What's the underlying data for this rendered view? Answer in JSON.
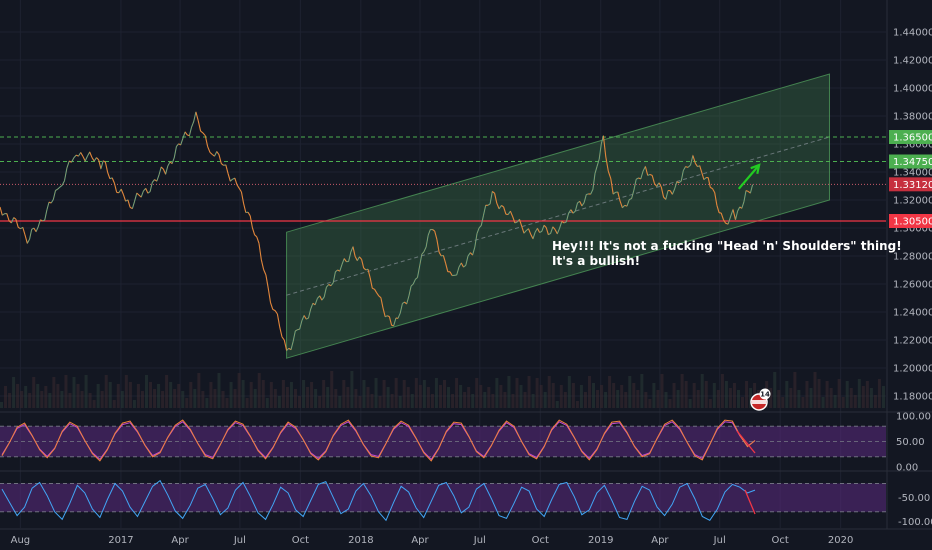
{
  "chart_data": {
    "type": "line",
    "instrument_note": "",
    "colors": {
      "background": "#131722",
      "grid": "#1e2230",
      "price": "#e0863c",
      "price_alt": "#2fa89a",
      "channel_fill": "#3f7a4a",
      "green_level": "#4caf50",
      "red_level": "#f23645",
      "pink_level": "#c85a6a",
      "stoch_k": "#f0813c",
      "stoch_d": "#c04ad0",
      "osc": "#42a5f5",
      "band": "#5b2a80",
      "arrow": "#22cc22",
      "red_line": "#f23645"
    },
    "x_labels": [
      "Aug",
      "2017",
      "Apr",
      "Jul",
      "Oct",
      "2018",
      "Apr",
      "Jul",
      "Oct",
      "2019",
      "Apr",
      "Jul",
      "Oct",
      "2020"
    ],
    "x_dates": [
      "2016-08-01",
      "2017-01-01",
      "2017-04-01",
      "2017-07-01",
      "2017-10-01",
      "2018-01-01",
      "2018-04-01",
      "2018-07-01",
      "2018-10-01",
      "2019-01-01",
      "2019-04-01",
      "2019-07-01",
      "2019-10-01",
      "2020-01-01"
    ],
    "y_ticks": [
      "1.44000",
      "1.42000",
      "1.40000",
      "1.38000",
      "1.36000",
      "1.34000",
      "1.32000",
      "1.30000",
      "1.28000",
      "1.26000",
      "1.24000",
      "1.22000",
      "1.20000",
      "1.18000"
    ],
    "ylim": [
      1.17,
      1.45
    ],
    "price_series": {
      "x": [
        "2016-07-01",
        "2016-08-15",
        "2016-09-30",
        "2016-10-25",
        "2016-12-05",
        "2017-01-15",
        "2017-03-10",
        "2017-04-25",
        "2017-05-20",
        "2017-06-30",
        "2017-07-30",
        "2017-08-20",
        "2017-09-10",
        "2017-10-20",
        "2017-11-20",
        "2017-12-20",
        "2018-01-25",
        "2018-02-20",
        "2018-03-25",
        "2018-04-20",
        "2018-05-20",
        "2018-06-20",
        "2018-07-20",
        "2018-08-20",
        "2018-09-20",
        "2018-10-20",
        "2018-11-20",
        "2018-12-20",
        "2019-01-05",
        "2019-01-20",
        "2019-02-10",
        "2019-03-10",
        "2019-04-10",
        "2019-05-10",
        "2019-05-25",
        "2019-06-20",
        "2019-07-10",
        "2019-07-25",
        "2019-08-10",
        "2019-08-20"
      ],
      "y": [
        1.315,
        1.292,
        1.328,
        1.355,
        1.345,
        1.315,
        1.342,
        1.378,
        1.355,
        1.33,
        1.285,
        1.245,
        1.212,
        1.245,
        1.262,
        1.286,
        1.255,
        1.228,
        1.265,
        1.3,
        1.262,
        1.285,
        1.325,
        1.305,
        1.297,
        1.298,
        1.31,
        1.33,
        1.364,
        1.325,
        1.315,
        1.345,
        1.32,
        1.342,
        1.35,
        1.325,
        1.303,
        1.31,
        1.322,
        1.331
      ]
    },
    "channel": {
      "lower": [
        [
          "2017-09-10",
          1.207
        ],
        [
          "2019-12-15",
          1.32
        ]
      ],
      "upper": [
        [
          "2017-09-10",
          1.297
        ],
        [
          "2019-12-15",
          1.41
        ]
      ],
      "mid": [
        [
          "2017-09-10",
          1.252
        ],
        [
          "2019-12-15",
          1.365
        ]
      ]
    },
    "levels": [
      {
        "label": "1.36500",
        "value": 1.365,
        "color": "green",
        "style": "dashed"
      },
      {
        "label": "1.34750",
        "value": 1.3475,
        "color": "green",
        "style": "dashed"
      },
      {
        "label": "1.33120",
        "value": 1.3312,
        "color": "pink",
        "style": "dotted"
      },
      {
        "label": "1.30500",
        "value": 1.305,
        "color": "red",
        "style": "solid"
      }
    ],
    "arrow": {
      "from": [
        "2019-07-30",
        1.328
      ],
      "to": [
        "2019-08-30",
        1.345
      ]
    },
    "annotation": [
      "Hey!!! It's not a fucking \"Head 'n' Shoulders\" thing!",
      "It's a bullish!"
    ],
    "event_badge": {
      "label": "14"
    },
    "stoch": {
      "y_ticks": [
        "100.00",
        "50.00",
        "0.00"
      ],
      "ylim": [
        0,
        100
      ],
      "band": [
        20,
        80
      ],
      "k_values": [
        22,
        48,
        78,
        86,
        62,
        34,
        18,
        36,
        70,
        88,
        80,
        52,
        26,
        12,
        34,
        66,
        86,
        90,
        70,
        42,
        20,
        28,
        58,
        82,
        92,
        74,
        46,
        22,
        16,
        44,
        74,
        90,
        84,
        60,
        32,
        16,
        38,
        68,
        88,
        78,
        54,
        26,
        14,
        30,
        62,
        84,
        92,
        72,
        44,
        22,
        18,
        46,
        76,
        90,
        82,
        56,
        28,
        12,
        36,
        70,
        88,
        86,
        60,
        30,
        18,
        42,
        72,
        90,
        80,
        50,
        24,
        16,
        40,
        74,
        92,
        84,
        58,
        30,
        14,
        34,
        66,
        88,
        90,
        68,
        40,
        20,
        26,
        56,
        84,
        92,
        76,
        48,
        22,
        14,
        44,
        76,
        92,
        90,
        62,
        40,
        52
      ]
    },
    "osc": {
      "y_ticks": [
        "-50.00",
        "-100.00"
      ],
      "ylim": [
        -110,
        0
      ],
      "band": [
        -80,
        -20
      ],
      "values": [
        -32,
        -60,
        -88,
        -70,
        -30,
        -18,
        -46,
        -80,
        -96,
        -62,
        -24,
        -40,
        -74,
        -92,
        -54,
        -20,
        -36,
        -70,
        -90,
        -58,
        -26,
        -14,
        -44,
        -78,
        -94,
        -66,
        -30,
        -22,
        -52,
        -86,
        -72,
        -34,
        -18,
        -48,
        -82,
        -96,
        -64,
        -28,
        -40,
        -76,
        -90,
        -56,
        -22,
        -16,
        -50,
        -84,
        -74,
        -36,
        -20,
        -46,
        -80,
        -98,
        -60,
        -26,
        -38,
        -72,
        -92,
        -58,
        -24,
        -18,
        -46,
        -82,
        -70,
        -32,
        -20,
        -52,
        -88,
        -94,
        -62,
        -28,
        -36,
        -74,
        -90,
        -54,
        -22,
        -18,
        -48,
        -86,
        -76,
        -40,
        -24,
        -56,
        -92,
        -96,
        -58,
        -26,
        -34,
        -70,
        -88,
        -64,
        -28,
        -20,
        -52,
        -90,
        -98,
        -74,
        -38,
        -22,
        -28,
        -40,
        -34
      ]
    }
  }
}
